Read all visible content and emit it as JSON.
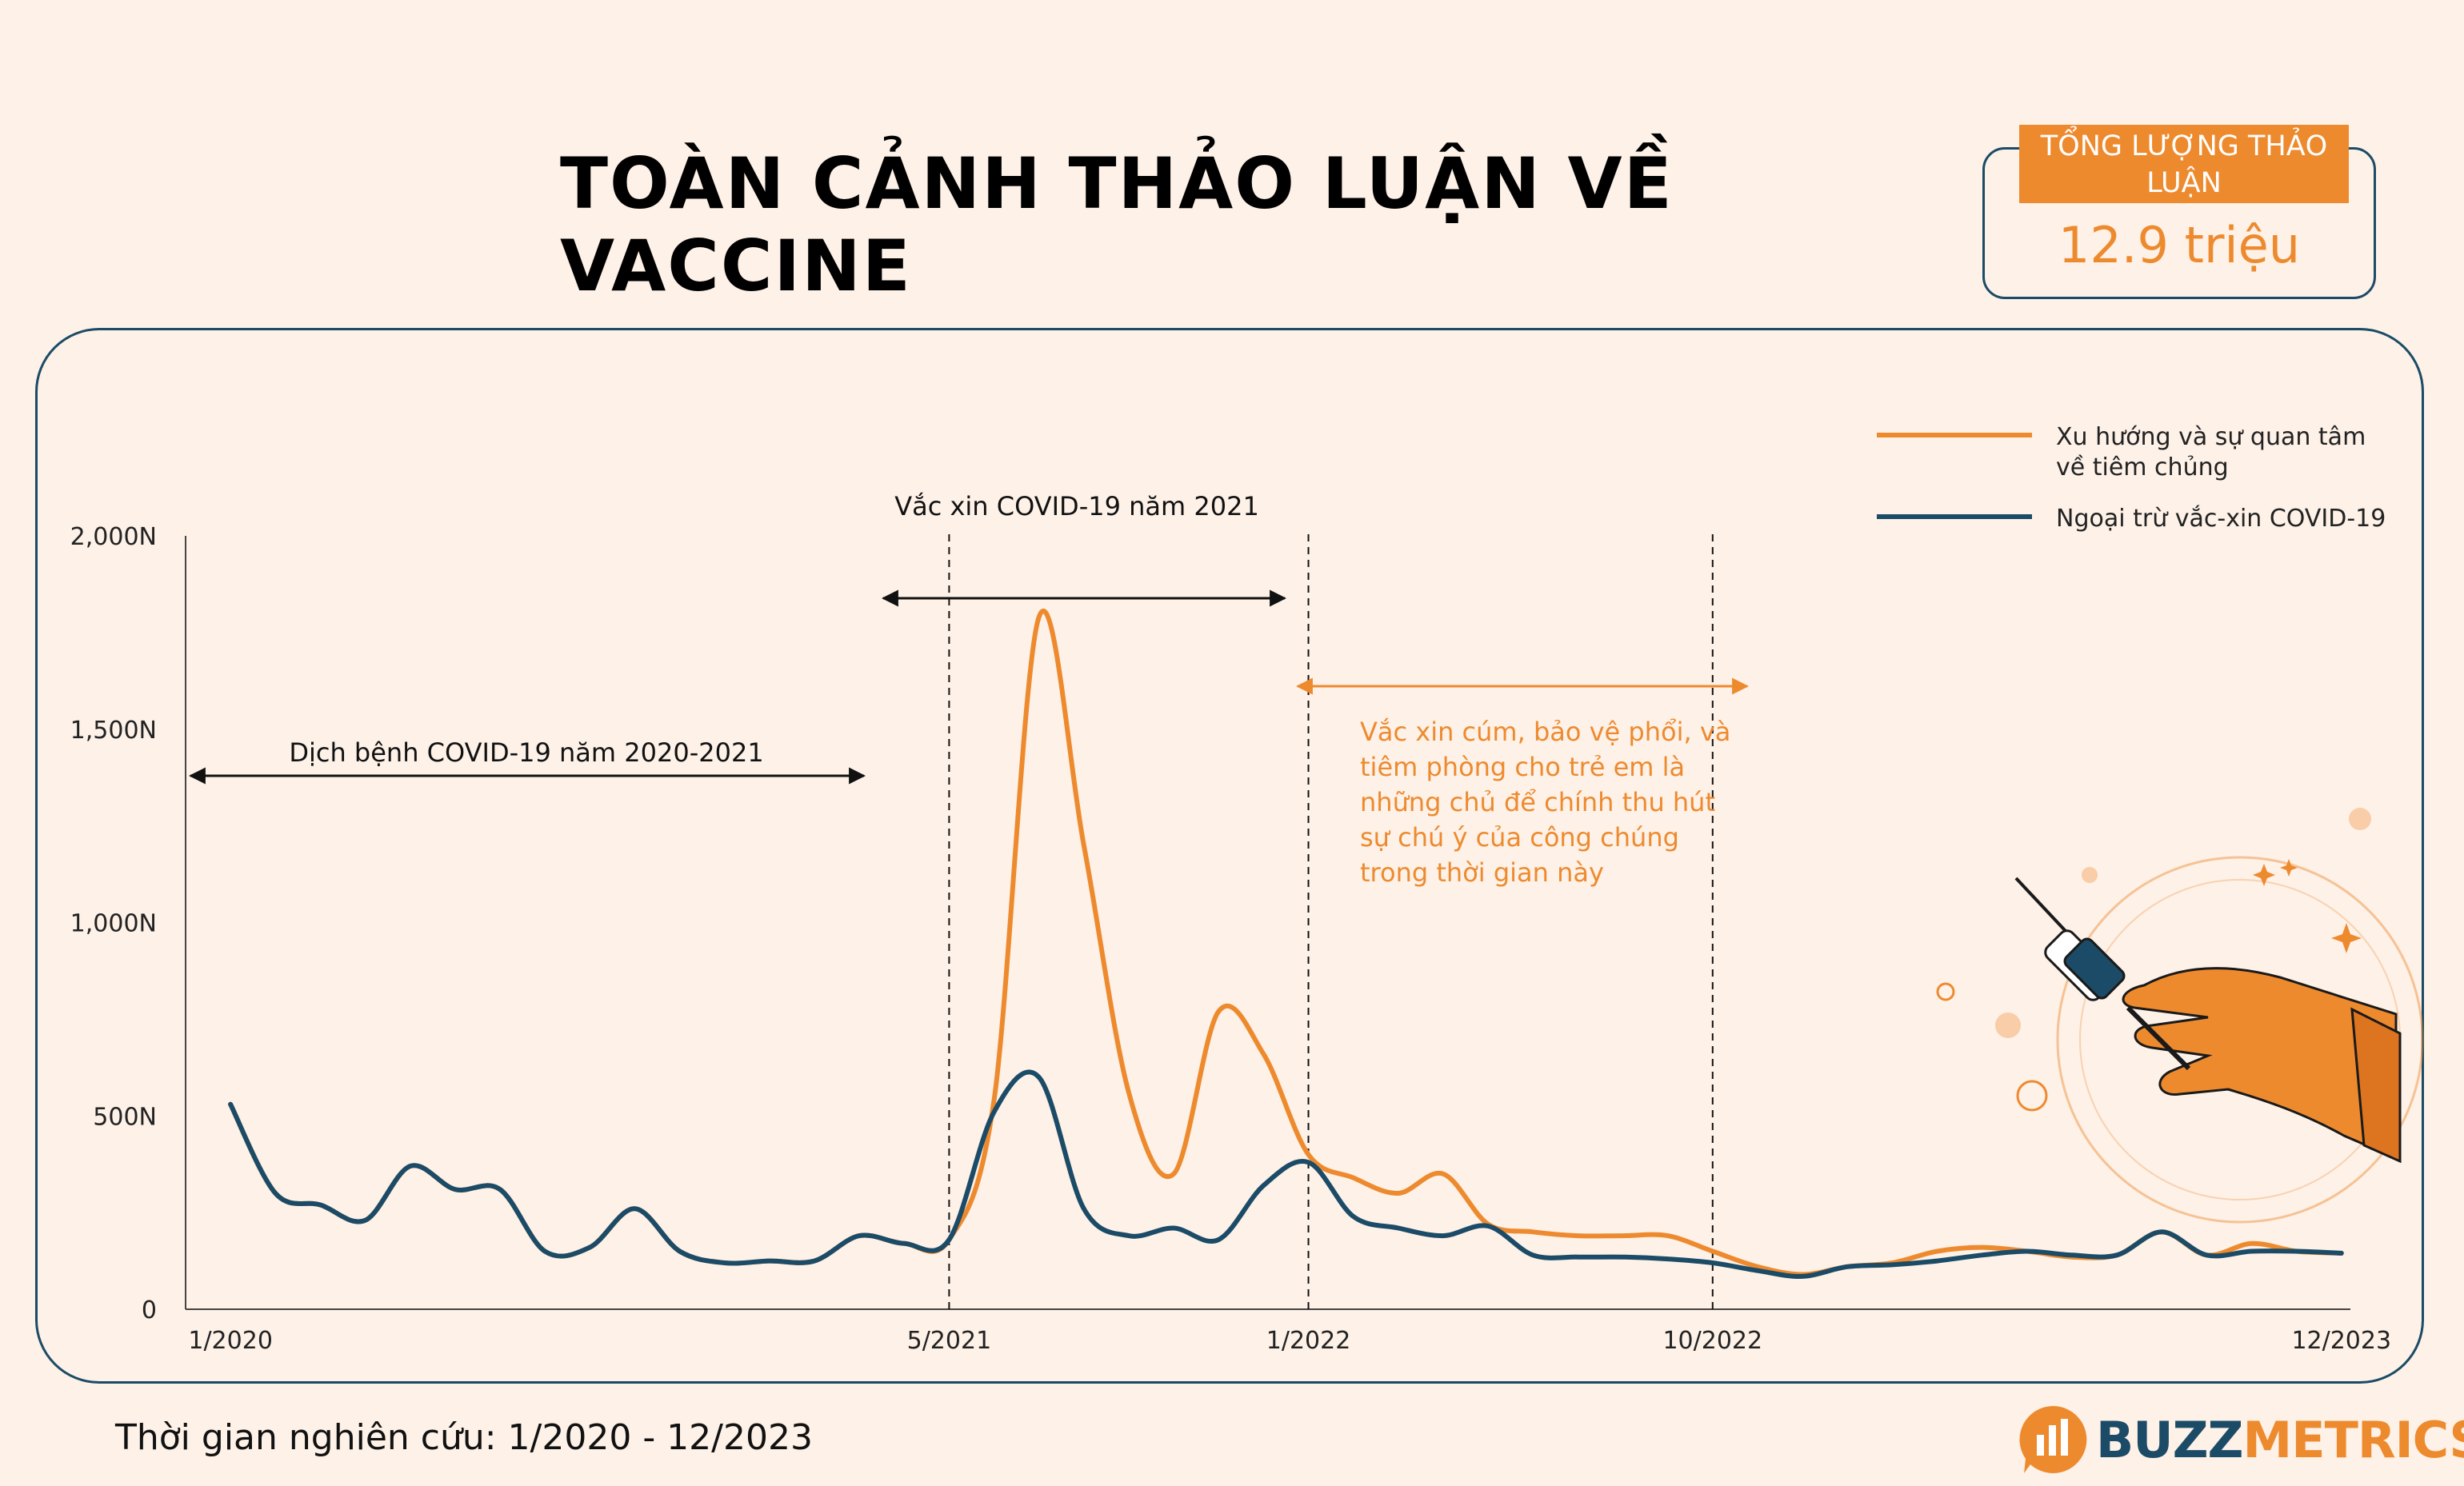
{
  "title": "TOÀN CẢNH THẢO LUẬN VỀ VACCINE",
  "total": {
    "label": "TỔNG LƯỢNG THẢO LUẬN",
    "value": "12.9 triệu"
  },
  "footer": "Thời gian nghiên cứu: 1/2020 - 12/2023",
  "brand": {
    "part1": "BUZZ",
    "part2": "METRICS"
  },
  "colors": {
    "orange": "#ee8a2e",
    "navy": "#1b4b66",
    "background": "#fdf1e8"
  },
  "annotations": {
    "covid_2020_2021": "Dịch bệnh COVID-19 năm 2020-2021",
    "covid_vaccine_2021": "Vắc xin COVID-19 năm 2021",
    "flu_note": [
      "Vắc xin cúm, bảo vệ phổi, và",
      "tiêm phòng cho trẻ em là",
      "những chủ để chính thu hút",
      "sự chú ý của công chúng",
      "trong thời gian này"
    ]
  },
  "chart_data": {
    "type": "line",
    "xlabel": "",
    "ylabel": "",
    "ylim": [
      0,
      2000
    ],
    "yticks": [
      0,
      500,
      1000,
      1500,
      2000
    ],
    "ytick_labels": [
      "0",
      "500N",
      "1,000N",
      "1,500N",
      "2,000N"
    ],
    "x_tick_labels": [
      "1/2020",
      "5/2021",
      "1/2022",
      "10/2022",
      "12/2023"
    ],
    "x_tick_index": [
      0,
      16,
      24,
      33,
      47
    ],
    "x_range": [
      -1,
      47.2
    ],
    "legend_position": "top-right",
    "grid": false,
    "dividers_at_index": [
      16,
      24,
      33
    ],
    "series": [
      {
        "name": "Xu hướng và sự quan tâm về tiêm chủng",
        "legend_lines": [
          "Xu hướng và sự quan tâm",
          "về tiêm chủng"
        ],
        "color": "#ee8a2e",
        "values": [
          530,
          300,
          270,
          230,
          370,
          310,
          310,
          150,
          160,
          260,
          150,
          120,
          125,
          125,
          190,
          170,
          180,
          540,
          1790,
          1200,
          560,
          350,
          770,
          660,
          400,
          340,
          300,
          350,
          220,
          200,
          190,
          190,
          190,
          150,
          110,
          90,
          110,
          120,
          150,
          160,
          150,
          135,
          140,
          200,
          140,
          170,
          150,
          145
        ]
      },
      {
        "name": "Ngoại trừ vắc-xin COVID-19",
        "legend_lines": [
          "Ngoại trừ vắc-xin COVID-19"
        ],
        "color": "#1b4b66",
        "values": [
          530,
          300,
          270,
          230,
          370,
          310,
          310,
          150,
          160,
          260,
          150,
          120,
          125,
          125,
          190,
          170,
          180,
          510,
          600,
          260,
          190,
          210,
          180,
          320,
          380,
          240,
          210,
          190,
          215,
          140,
          135,
          135,
          130,
          120,
          100,
          85,
          110,
          115,
          125,
          140,
          150,
          140,
          140,
          200,
          140,
          150,
          150,
          145
        ]
      }
    ]
  }
}
